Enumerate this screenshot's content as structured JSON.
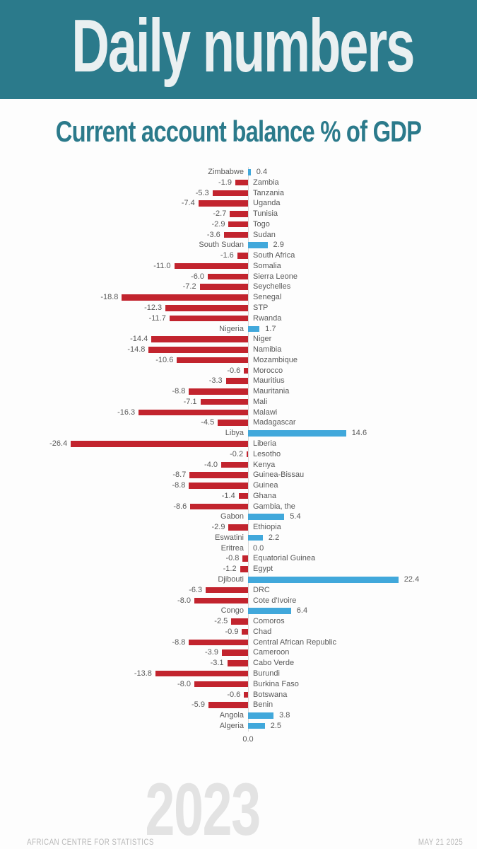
{
  "header": {
    "title": "Daily numbers",
    "background_color": "#2b7a8b",
    "text_color": "#eaf0f1"
  },
  "chart_data": {
    "type": "bar",
    "orientation": "horizontal",
    "title": "Current account balance % of GDP",
    "xlabel": "",
    "ylabel": "",
    "xlim": [
      -26.4,
      22.4
    ],
    "grid": false,
    "zero_tick_label": "0.0",
    "positive_color": "#41a8db",
    "negative_color": "#c2242e",
    "label_color": "#595959",
    "categories": [
      "Zimbabwe",
      "Zambia",
      "Tanzania",
      "Uganda",
      "Tunisia",
      "Togo",
      "Sudan",
      "South Sudan",
      "South Africa",
      "Somalia",
      "Sierra Leone",
      "Seychelles",
      "Senegal",
      "STP",
      "Rwanda",
      "Nigeria",
      "Niger",
      "Namibia",
      "Mozambique",
      "Morocco",
      "Mauritius",
      "Mauritania",
      "Mali",
      "Malawi",
      "Madagascar",
      "Libya",
      "Liberia",
      "Lesotho",
      "Kenya",
      "Guinea-Bissau",
      "Guinea",
      "Ghana",
      "Gambia, the",
      "Gabon",
      "Ethiopia",
      "Eswatini",
      "Eritrea",
      "Equatorial Guinea",
      "Egypt",
      "Djibouti",
      "DRC",
      "Cote d'Ivoire",
      "Congo",
      "Comoros",
      "Chad",
      "Central African Republic",
      "Cameroon",
      "Cabo Verde",
      "Burundi",
      "Burkina Faso",
      "Botswana",
      "Benin",
      "Angola",
      "Algeria"
    ],
    "values": [
      0.4,
      -1.9,
      -5.3,
      -7.4,
      -2.7,
      -2.9,
      -3.6,
      2.9,
      -1.6,
      -11.0,
      -6.0,
      -7.2,
      -18.8,
      -12.3,
      -11.7,
      1.7,
      -14.4,
      -14.8,
      -10.6,
      -0.6,
      -3.3,
      -8.8,
      -7.1,
      -16.3,
      -4.5,
      14.6,
      -26.4,
      -0.2,
      -4.0,
      -8.7,
      -8.8,
      -1.4,
      -8.6,
      5.4,
      -2.9,
      2.2,
      0.0,
      -0.8,
      -1.2,
      22.4,
      -6.3,
      -8.0,
      6.4,
      -2.5,
      -0.9,
      -8.8,
      -3.9,
      -3.1,
      -13.8,
      -8.0,
      -0.6,
      -5.9,
      3.8,
      2.5
    ]
  },
  "footer": {
    "year_watermark": "2023",
    "source": "AFRICAN CENTRE FOR STATISTICS",
    "date": "MAY 21 2025"
  }
}
